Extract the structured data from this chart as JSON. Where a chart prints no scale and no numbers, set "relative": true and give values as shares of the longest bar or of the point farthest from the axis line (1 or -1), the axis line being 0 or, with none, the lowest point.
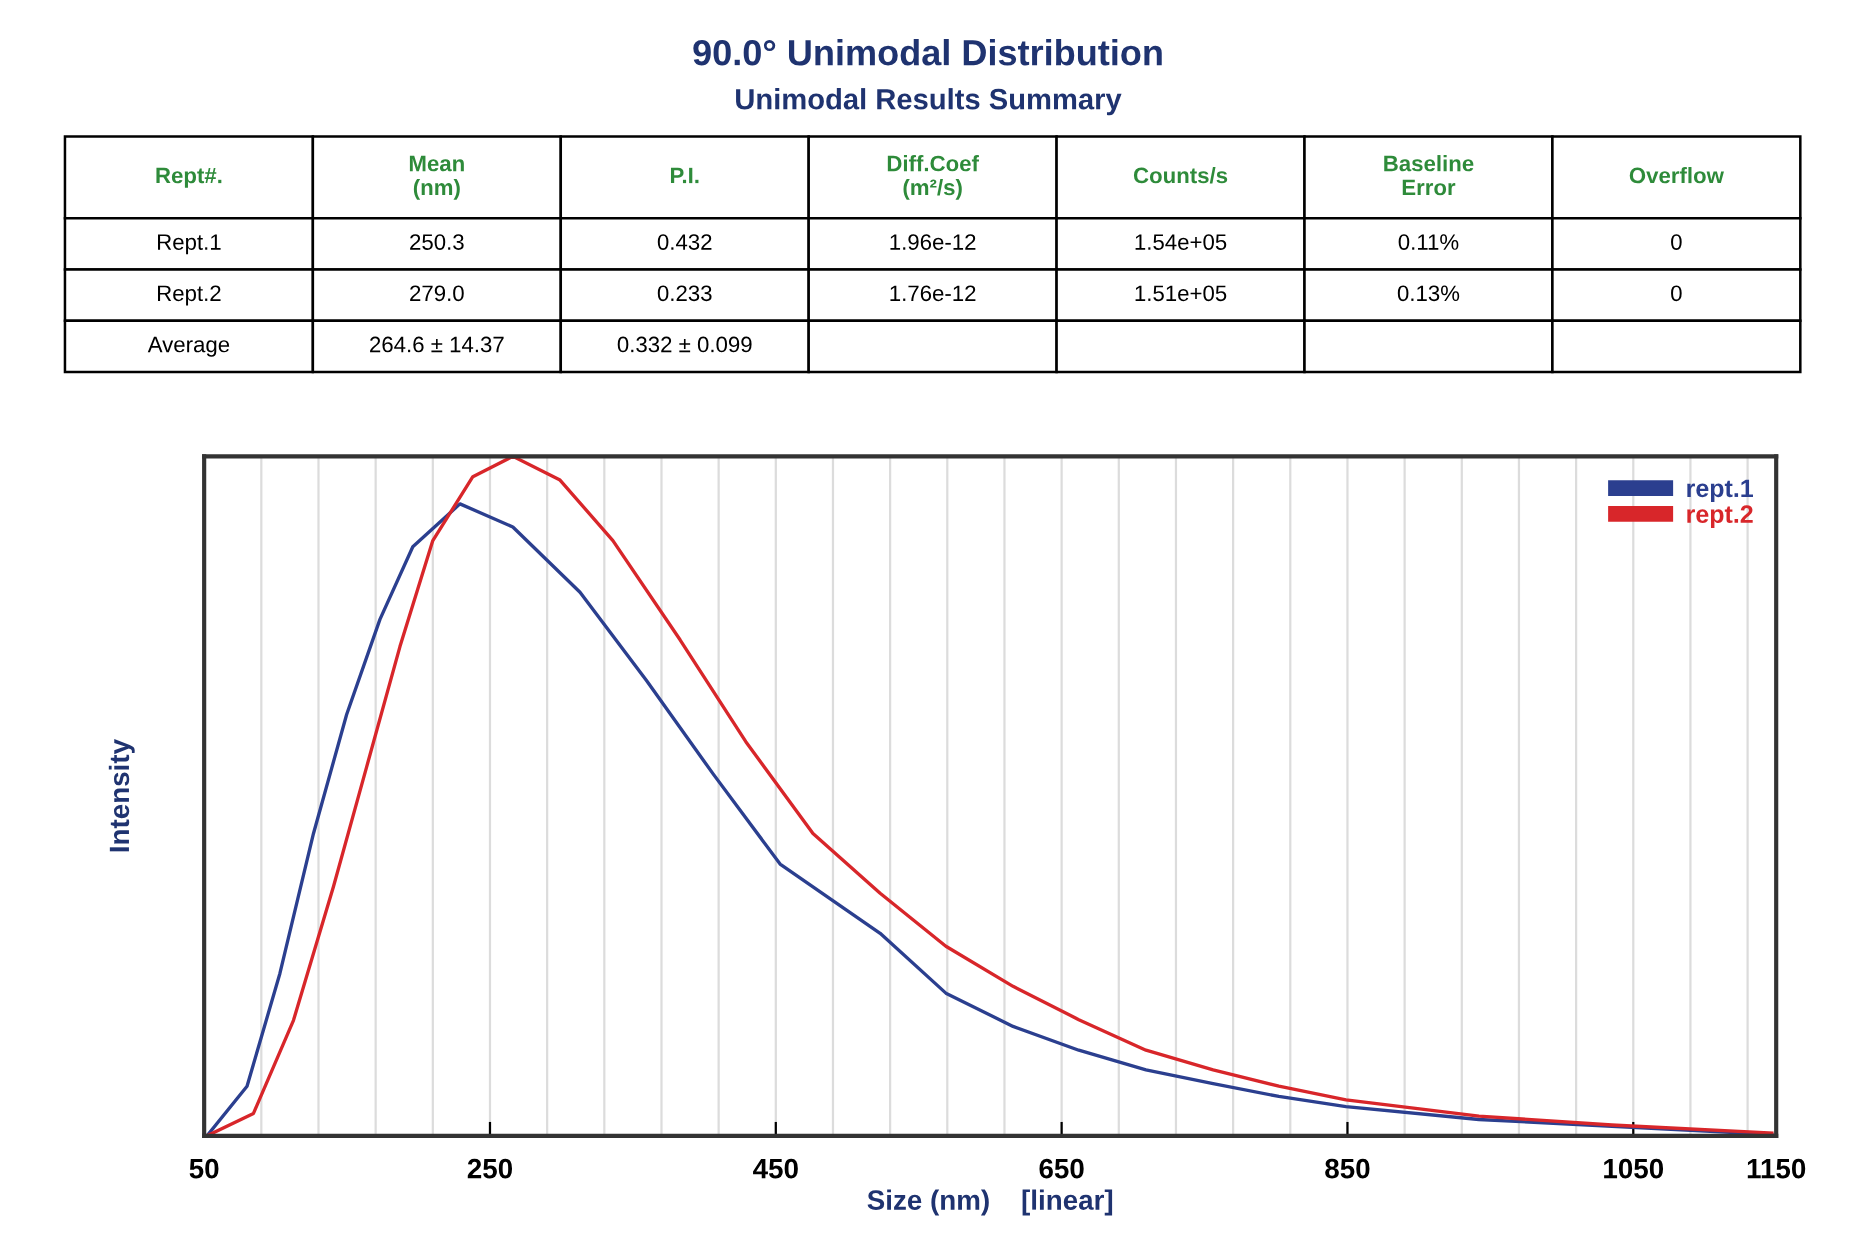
{
  "chart_data": [
    {
      "type": "other",
      "title": "90.0° Unimodal Distribution",
      "subtitle": "Unimodal Results Summary",
      "annotations": [
        "Rept#.",
        "Mean\n(nm)",
        "P.I.",
        "Diff.Coef\n(m²/s)",
        "Counts/s",
        "Baseline\nError",
        "Overflow",
        "Rept.1",
        "250.3",
        "0.432",
        "1.96e-12",
        "1.54e+05",
        "0.11%",
        "0",
        "Rept.2",
        "279.0",
        "0.233",
        "1.76e-12",
        "1.51e+05",
        "0.13%",
        "0",
        "Average",
        "264.6 ± 14.37",
        "0.332 ± 0.099"
      ]
    },
    {
      "type": "line",
      "xlabel": "Size (nm)    [linear]",
      "ylabel": "Intensity",
      "relative": true,
      "xlim": [
        50,
        1150
      ],
      "xticks": [
        50,
        {
          "value": 90,
          "label": null
        },
        {
          "value": 130,
          "label": null
        },
        {
          "value": 170,
          "label": null
        },
        {
          "value": 210,
          "label": null
        },
        250,
        {
          "value": 290,
          "label": null
        },
        {
          "value": 330,
          "label": null
        },
        {
          "value": 370,
          "label": null
        },
        {
          "value": 410,
          "label": null
        },
        450,
        {
          "value": 490,
          "label": null
        },
        {
          "value": 530,
          "label": null
        },
        {
          "value": 570,
          "label": null
        },
        {
          "value": 610,
          "label": null
        },
        650,
        {
          "value": 690,
          "label": null
        },
        {
          "value": 730,
          "label": null
        },
        {
          "value": 770,
          "label": null
        },
        {
          "value": 810,
          "label": null
        },
        850,
        {
          "value": 890,
          "label": null
        },
        {
          "value": 930,
          "label": null
        },
        {
          "value": 970,
          "label": null
        },
        {
          "value": 1010,
          "label": null
        },
        1050,
        {
          "value": 1090,
          "label": null
        },
        {
          "value": 1130,
          "label": null
        },
        1150
      ],
      "grid": "x",
      "legend": "top right",
      "marker": "none",
      "line_style": "solid",
      "series": [
        {
          "name": "rept.1",
          "color": "#2b3f8f",
          "x": [
            52,
            80,
            103,
            126.5,
            149.7,
            173,
            196,
            229,
            266,
            313,
            359.5,
            406,
            453,
            523,
            569,
            616,
            662,
            709,
            756,
            802,
            849,
            942,
            1035,
            1147
          ],
          "values": [
            0,
            0.073,
            0.239,
            0.445,
            0.62,
            0.76,
            0.867,
            0.93,
            0.896,
            0.8,
            0.67,
            0.533,
            0.4,
            0.298,
            0.21,
            0.161,
            0.126,
            0.097,
            0.077,
            0.058,
            0.043,
            0.024,
            0.014,
            0.002
          ]
        },
        {
          "name": "rept.2",
          "color": "#d8262a",
          "x": [
            52,
            84.5,
            112.5,
            140.5,
            163.7,
            187,
            210,
            238,
            266,
            299,
            336,
            383,
            429,
            476,
            523,
            569,
            616,
            662,
            709,
            756,
            802,
            849,
            942,
            1035,
            1147
          ],
          "values": [
            0,
            0.033,
            0.17,
            0.367,
            0.543,
            0.72,
            0.876,
            0.97,
            1,
            0.965,
            0.876,
            0.73,
            0.58,
            0.445,
            0.357,
            0.279,
            0.22,
            0.171,
            0.126,
            0.097,
            0.073,
            0.053,
            0.029,
            0.016,
            0.004
          ]
        }
      ]
    }
  ]
}
